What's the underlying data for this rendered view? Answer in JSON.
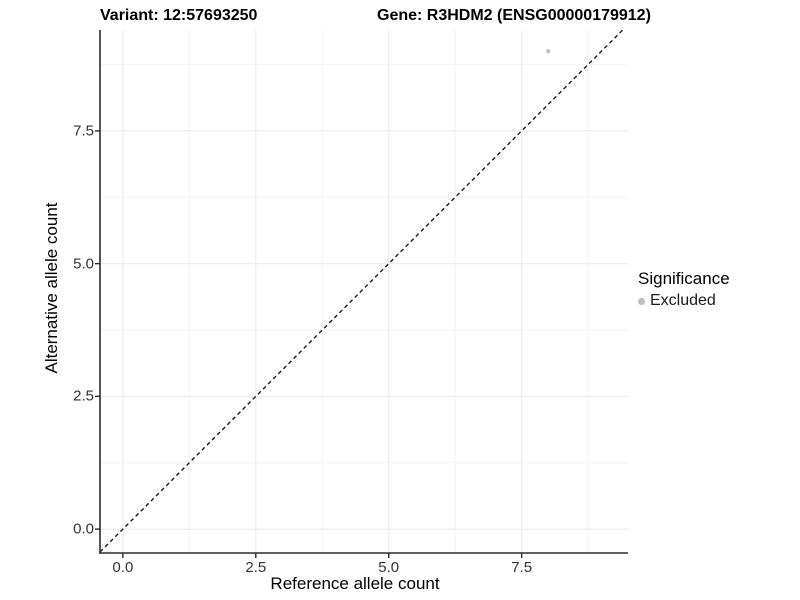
{
  "title": {
    "variant": "Variant: 12:57693250",
    "gene": "Gene: R3HDM2 (ENSG00000179912)"
  },
  "chart_data": {
    "type": "scatter",
    "xlabel": "Reference allele count",
    "ylabel": "Alternative allele count",
    "xlim": [
      -0.43,
      9.5
    ],
    "ylim": [
      -0.45,
      9.4
    ],
    "x_ticks": {
      "values": [
        0,
        2.5,
        5,
        7.5
      ],
      "labels": [
        "0.0",
        "2.5",
        "5.0",
        "7.5"
      ]
    },
    "y_ticks": {
      "values": [
        0,
        2.5,
        5,
        7.5
      ],
      "labels": [
        "0.0",
        "2.5",
        "5.0",
        "7.5"
      ]
    },
    "x_minor_ticks": [
      1.25,
      3.75,
      6.25,
      8.75
    ],
    "y_minor_ticks": [
      1.25,
      3.75,
      6.25,
      8.75
    ],
    "grid": true,
    "points": [
      {
        "x": 8,
        "y": 9,
        "series": "Excluded"
      }
    ],
    "identity_line": {
      "slope": 1,
      "intercept": 0,
      "style": "dashed"
    },
    "legend": {
      "title": "Significance",
      "position": "right",
      "items": [
        {
          "label": "Excluded",
          "color": "#bebebe"
        }
      ]
    },
    "colors": {
      "point": "#bebebe",
      "major_grid": "#ececec",
      "minor_grid": "#f5f5f5",
      "axis_line": "#2b2b2b",
      "dashed_line": "#1a1a1a",
      "tick_label": "#333333"
    }
  }
}
